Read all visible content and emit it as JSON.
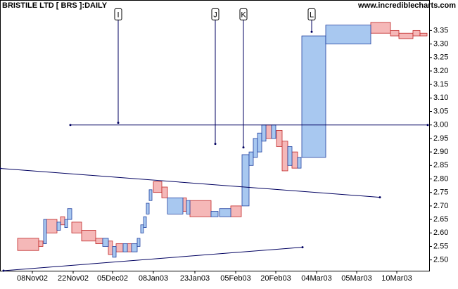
{
  "chart_data": {
    "type": "equivolume",
    "title": "BRISTILE LTD [ BRS ]:DAILY",
    "source": "www.incrediblecharts.com",
    "xlim": [
      0,
      610
    ],
    "ylim": [
      2.46,
      3.45
    ],
    "xticks": [
      {
        "value": 46,
        "label": "08Nov02"
      },
      {
        "value": 104,
        "label": "22Nov02"
      },
      {
        "value": 160,
        "label": "05Dec02"
      },
      {
        "value": 218,
        "label": "08Jan03"
      },
      {
        "value": 277,
        "label": "23Jan03"
      },
      {
        "value": 335,
        "label": "05Feb03"
      },
      {
        "value": 392,
        "label": "20Feb03"
      },
      {
        "value": 450,
        "label": "04Mar03"
      },
      {
        "value": 507,
        "label": "05Mar03"
      },
      {
        "value": 564,
        "label": "10Mar03"
      }
    ],
    "yticks": [
      {
        "value": 2.5,
        "label": "2.50"
      },
      {
        "value": 2.55,
        "label": "2.55"
      },
      {
        "value": 2.6,
        "label": "2.60"
      },
      {
        "value": 2.65,
        "label": "2.65"
      },
      {
        "value": 2.7,
        "label": "2.70"
      },
      {
        "value": 2.75,
        "label": "2.75"
      },
      {
        "value": 2.8,
        "label": "2.80"
      },
      {
        "value": 2.85,
        "label": "2.85"
      },
      {
        "value": 2.9,
        "label": "2.90"
      },
      {
        "value": 2.95,
        "label": "2.95"
      },
      {
        "value": 3.0,
        "label": "3.00"
      },
      {
        "value": 3.05,
        "label": "3.05"
      },
      {
        "value": 3.1,
        "label": "3.10"
      },
      {
        "value": 3.15,
        "label": "3.15"
      },
      {
        "value": 3.2,
        "label": "3.20"
      },
      {
        "value": 3.25,
        "label": "3.25"
      },
      {
        "value": 3.3,
        "label": "3.30"
      },
      {
        "value": 3.35,
        "label": "3.35"
      }
    ],
    "series": [
      {
        "color": "#f5b8b8",
        "stroke": "#c02828",
        "x": [
          25,
          55,
          66,
          86,
          102,
          116,
          136,
          154,
          165,
          181,
          218,
          230,
          260,
          270,
          328,
          378,
          393,
          401,
          415,
          527,
          555,
          567,
          587,
          597
        ],
        "widths": [
          30,
          6,
          15,
          6,
          14,
          20,
          10,
          6,
          10,
          6,
          12,
          8,
          5,
          30,
          15,
          8,
          8,
          8,
          8,
          28,
          12,
          20,
          10,
          10
        ],
        "high": [
          2.58,
          2.57,
          2.65,
          2.66,
          2.64,
          2.61,
          2.58,
          2.57,
          2.56,
          2.56,
          2.79,
          2.77,
          2.73,
          2.72,
          2.7,
          3.0,
          2.98,
          2.94,
          2.9,
          3.38,
          3.35,
          3.34,
          3.35,
          3.34
        ],
        "low": [
          2.535,
          2.55,
          2.6,
          2.63,
          2.6,
          2.57,
          2.56,
          2.52,
          2.53,
          2.53,
          2.75,
          2.73,
          2.68,
          2.66,
          2.66,
          2.95,
          2.92,
          2.83,
          2.84,
          3.34,
          3.33,
          3.32,
          3.33,
          3.33
        ]
      },
      {
        "color": "#a8c8f0",
        "stroke": "#2040a0",
        "x": [
          62,
          81,
          92,
          96,
          146,
          160,
          175,
          187,
          195,
          200,
          204,
          208,
          212,
          238,
          265,
          300,
          312,
          344,
          354,
          360,
          366,
          372,
          386,
          409,
          423,
          429,
          463
        ],
        "widths": [
          4,
          5,
          4,
          6,
          8,
          5,
          6,
          8,
          4,
          4,
          4,
          4,
          4,
          22,
          5,
          10,
          16,
          10,
          6,
          6,
          6,
          6,
          6,
          6,
          5,
          34,
          64
        ],
        "high": [
          2.65,
          2.64,
          2.65,
          2.69,
          2.58,
          2.55,
          2.56,
          2.56,
          2.58,
          2.63,
          2.66,
          2.71,
          2.76,
          2.73,
          2.72,
          2.68,
          2.69,
          2.89,
          2.9,
          2.95,
          2.97,
          3.0,
          3.0,
          2.92,
          2.88,
          3.33,
          3.37
        ],
        "low": [
          2.56,
          2.61,
          2.62,
          2.65,
          2.55,
          2.51,
          2.53,
          2.53,
          2.55,
          2.6,
          2.62,
          2.67,
          2.72,
          2.67,
          2.67,
          2.66,
          2.66,
          2.7,
          2.85,
          2.88,
          2.9,
          2.94,
          2.95,
          2.85,
          2.84,
          2.88,
          3.3
        ]
      }
    ],
    "trendlines": [
      {
        "x": [
          0,
          540
        ],
        "y": [
          2.839,
          2.732
        ]
      },
      {
        "x": [
          5,
          430
        ],
        "y": [
          2.46,
          2.547
        ]
      },
      {
        "x": [
          100,
          608
        ],
        "y": [
          3.0,
          3.0
        ]
      }
    ],
    "annotations": [
      {
        "label": "I",
        "x": 168,
        "y": [
          3.41,
          3.008
        ]
      },
      {
        "label": "J",
        "x": 306,
        "y": [
          3.41,
          2.93
        ]
      },
      {
        "label": "K",
        "x": 346,
        "y": [
          3.41,
          2.917
        ]
      },
      {
        "label": "L",
        "x": 443,
        "y": [
          3.41,
          3.345
        ]
      }
    ]
  }
}
